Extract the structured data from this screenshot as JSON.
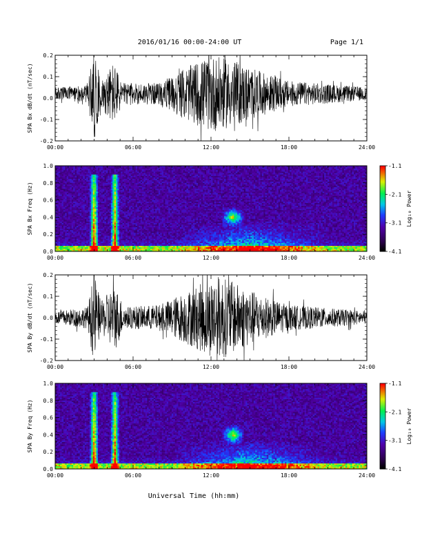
{
  "header": {
    "title": "2016/01/16  00:00-24:00 UT",
    "page": "Page 1/1"
  },
  "footer": {
    "xlabel": "Universal Time (hh:mm)"
  },
  "colorbar": {
    "labels": [
      "-1.1",
      "-2.1",
      "-3.1",
      "-4.1"
    ],
    "title": "Log₁₀ Power",
    "colors": [
      "#ff0000",
      "#ffff00",
      "#00ff00",
      "#00dddd",
      "#0040ff",
      "#5000b0",
      "#000000"
    ]
  },
  "chart_data": [
    {
      "type": "line",
      "title": "",
      "xlabel": "",
      "ylabel": "SPA Bx dB/dt (nT/sec)",
      "xticks": [
        "00:00",
        "06:00",
        "12:00",
        "18:00",
        "24:00"
      ],
      "yticks": [
        "0.2",
        "0.1",
        "0.0",
        "-0.1",
        "-0.2"
      ],
      "xlim": [
        0,
        24
      ],
      "ylim": [
        -0.2,
        0.2
      ],
      "offset": 0.02,
      "envelope": [
        {
          "t": 0,
          "a": 0.03
        },
        {
          "t": 2.5,
          "a": 0.04
        },
        {
          "t": 3.0,
          "a": 0.22
        },
        {
          "t": 3.5,
          "a": 0.06
        },
        {
          "t": 4.5,
          "a": 0.15
        },
        {
          "t": 5.2,
          "a": 0.05
        },
        {
          "t": 8.0,
          "a": 0.05
        },
        {
          "t": 10.0,
          "a": 0.12
        },
        {
          "t": 12.0,
          "a": 0.18
        },
        {
          "t": 14.0,
          "a": 0.15
        },
        {
          "t": 16.0,
          "a": 0.1
        },
        {
          "t": 18.0,
          "a": 0.06
        },
        {
          "t": 24.0,
          "a": 0.03
        }
      ]
    },
    {
      "type": "heatmap",
      "title": "",
      "xlabel": "",
      "ylabel": "SPA Bx Freq (Hz)",
      "xticks": [
        "00:00",
        "06:00",
        "12:00",
        "18:00",
        "24:00"
      ],
      "yticks": [
        "1.0",
        "0.8",
        "0.6",
        "0.4",
        "0.2",
        "0.0"
      ],
      "xlim": [
        0,
        24
      ],
      "ylim": [
        0,
        1.0
      ],
      "zlim": [
        -4.1,
        -1.1
      ],
      "zlabel": "Log₁₀ Power",
      "features": [
        {
          "t": 3.0,
          "f_max": 0.9,
          "strength": 0.85
        },
        {
          "t": 4.6,
          "f_max": 0.9,
          "strength": 0.8
        },
        {
          "t": 13.7,
          "f_center": 0.4,
          "strength": 0.6
        },
        {
          "t_range": [
            9,
            21
          ],
          "f_max": 0.35,
          "strength": 0.5
        }
      ]
    },
    {
      "type": "line",
      "title": "",
      "xlabel": "",
      "ylabel": "SPA By dB/dt (nT/sec)",
      "xticks": [
        "00:00",
        "06:00",
        "12:00",
        "18:00",
        "24:00"
      ],
      "yticks": [
        "0.2",
        "0.1",
        "0.0",
        "-0.1",
        "-0.2"
      ],
      "xlim": [
        0,
        24
      ],
      "ylim": [
        -0.2,
        0.2
      ],
      "offset": 0.0,
      "envelope": [
        {
          "t": 0,
          "a": 0.03
        },
        {
          "t": 2.5,
          "a": 0.05
        },
        {
          "t": 3.0,
          "a": 0.22
        },
        {
          "t": 3.5,
          "a": 0.07
        },
        {
          "t": 4.6,
          "a": 0.16
        },
        {
          "t": 5.3,
          "a": 0.05
        },
        {
          "t": 8.0,
          "a": 0.06
        },
        {
          "t": 10.0,
          "a": 0.12
        },
        {
          "t": 12.5,
          "a": 0.2
        },
        {
          "t": 14.0,
          "a": 0.16
        },
        {
          "t": 16.0,
          "a": 0.1
        },
        {
          "t": 18.0,
          "a": 0.06
        },
        {
          "t": 24.0,
          "a": 0.03
        }
      ]
    },
    {
      "type": "heatmap",
      "title": "",
      "xlabel": "",
      "ylabel": "SPA By Freq (Hz)",
      "xticks": [
        "00:00",
        "06:00",
        "12:00",
        "18:00",
        "24:00"
      ],
      "yticks": [
        "1.0",
        "0.8",
        "0.6",
        "0.4",
        "0.2",
        "0.0"
      ],
      "xlim": [
        0,
        24
      ],
      "ylim": [
        0,
        1.0
      ],
      "zlim": [
        -4.1,
        -1.1
      ],
      "zlabel": "Log₁₀ Power",
      "features": [
        {
          "t": 3.0,
          "f_max": 0.9,
          "strength": 0.85
        },
        {
          "t": 4.6,
          "f_max": 0.9,
          "strength": 0.8
        },
        {
          "t": 13.7,
          "f_center": 0.4,
          "strength": 0.6
        },
        {
          "t_range": [
            9,
            21
          ],
          "f_max": 0.35,
          "strength": 0.5
        }
      ]
    }
  ]
}
